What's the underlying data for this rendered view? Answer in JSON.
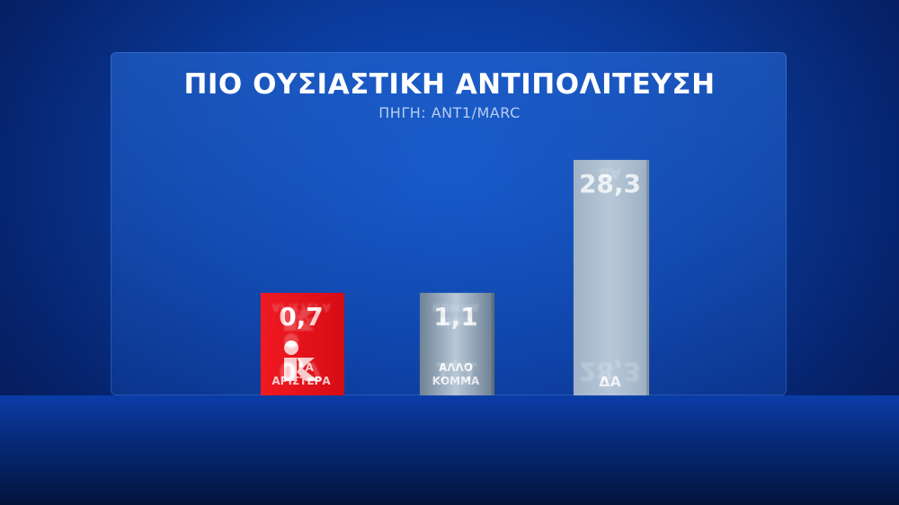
{
  "chart_data": {
    "type": "bar",
    "title": "ΠΙΟ ΟΥΣΙΑΣΤΙΚΗ ΑΝΤΙΠΟΛΙΤΕΥΣΗ",
    "subtitle": "ΠΗΓΗ: ΑΝΤ1/MARC",
    "categories": [
      "ΝΕΑ ΑΡΙΣΤΕΡΑ",
      "ΑΛΛΟ ΚΟΜΜΑ",
      "ΔΑ"
    ],
    "value_labels": [
      "0,7",
      "1,1",
      "28,3"
    ],
    "values": [
      0.7,
      1.1,
      28.3
    ],
    "colors": [
      "#e3101a",
      "#6f8396",
      "#9fb2c6"
    ],
    "logo_icons": [
      "nea-aristera-logo",
      null,
      null
    ],
    "grid": false,
    "legend": "none"
  }
}
